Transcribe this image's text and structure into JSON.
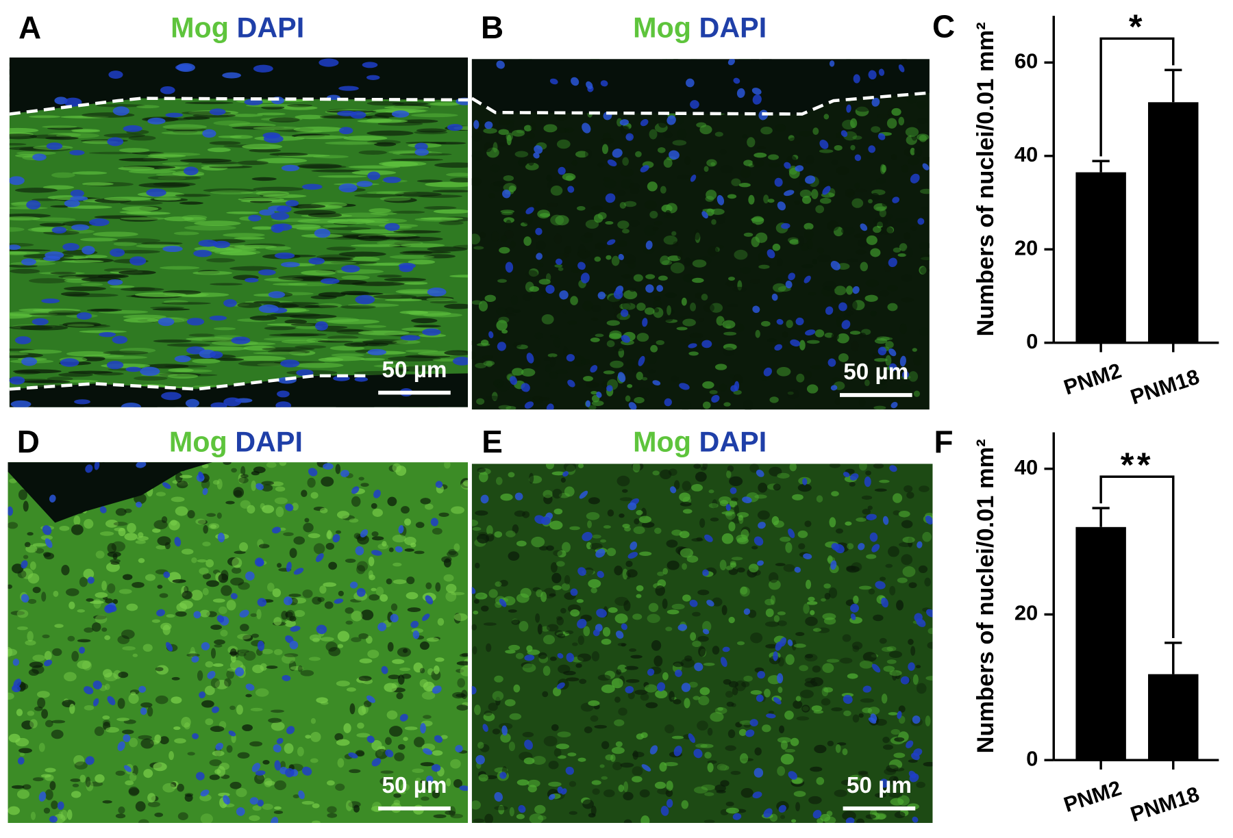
{
  "panels": [
    {
      "letter": "A",
      "stain1": "Mog",
      "stain2": "DAPI",
      "scale_bar": "50 µm"
    },
    {
      "letter": "B",
      "stain1": "Mog",
      "stain2": "DAPI",
      "scale_bar": "50 µm"
    },
    {
      "letter": "D",
      "stain1": "Mog",
      "stain2": "DAPI",
      "scale_bar": "50 µm"
    },
    {
      "letter": "E",
      "stain1": "Mog",
      "stain2": "DAPI",
      "scale_bar": "50 µm"
    }
  ],
  "chart_data": [
    {
      "type": "bar",
      "panel_letter": "C",
      "ylabel": "Numbers of nuclei/0.01 mm²",
      "categories": [
        "PNM2",
        "PNM18"
      ],
      "values": [
        36.5,
        51.5
      ],
      "errors": [
        2.4,
        6.9
      ],
      "color": "#000000",
      "ylim": [
        0,
        70
      ],
      "yticks": [
        0,
        20,
        40,
        60
      ],
      "significance": "*"
    },
    {
      "type": "bar",
      "panel_letter": "F",
      "ylabel": "Numbers of nuclei/0.01 mm²",
      "categories": [
        "PNM2",
        "PNM18"
      ],
      "values": [
        32.0,
        11.8
      ],
      "errors": [
        2.6,
        4.3
      ],
      "color": "#000000",
      "ylim": [
        0,
        45
      ],
      "yticks": [
        0,
        20,
        40
      ],
      "significance": "**"
    }
  ]
}
